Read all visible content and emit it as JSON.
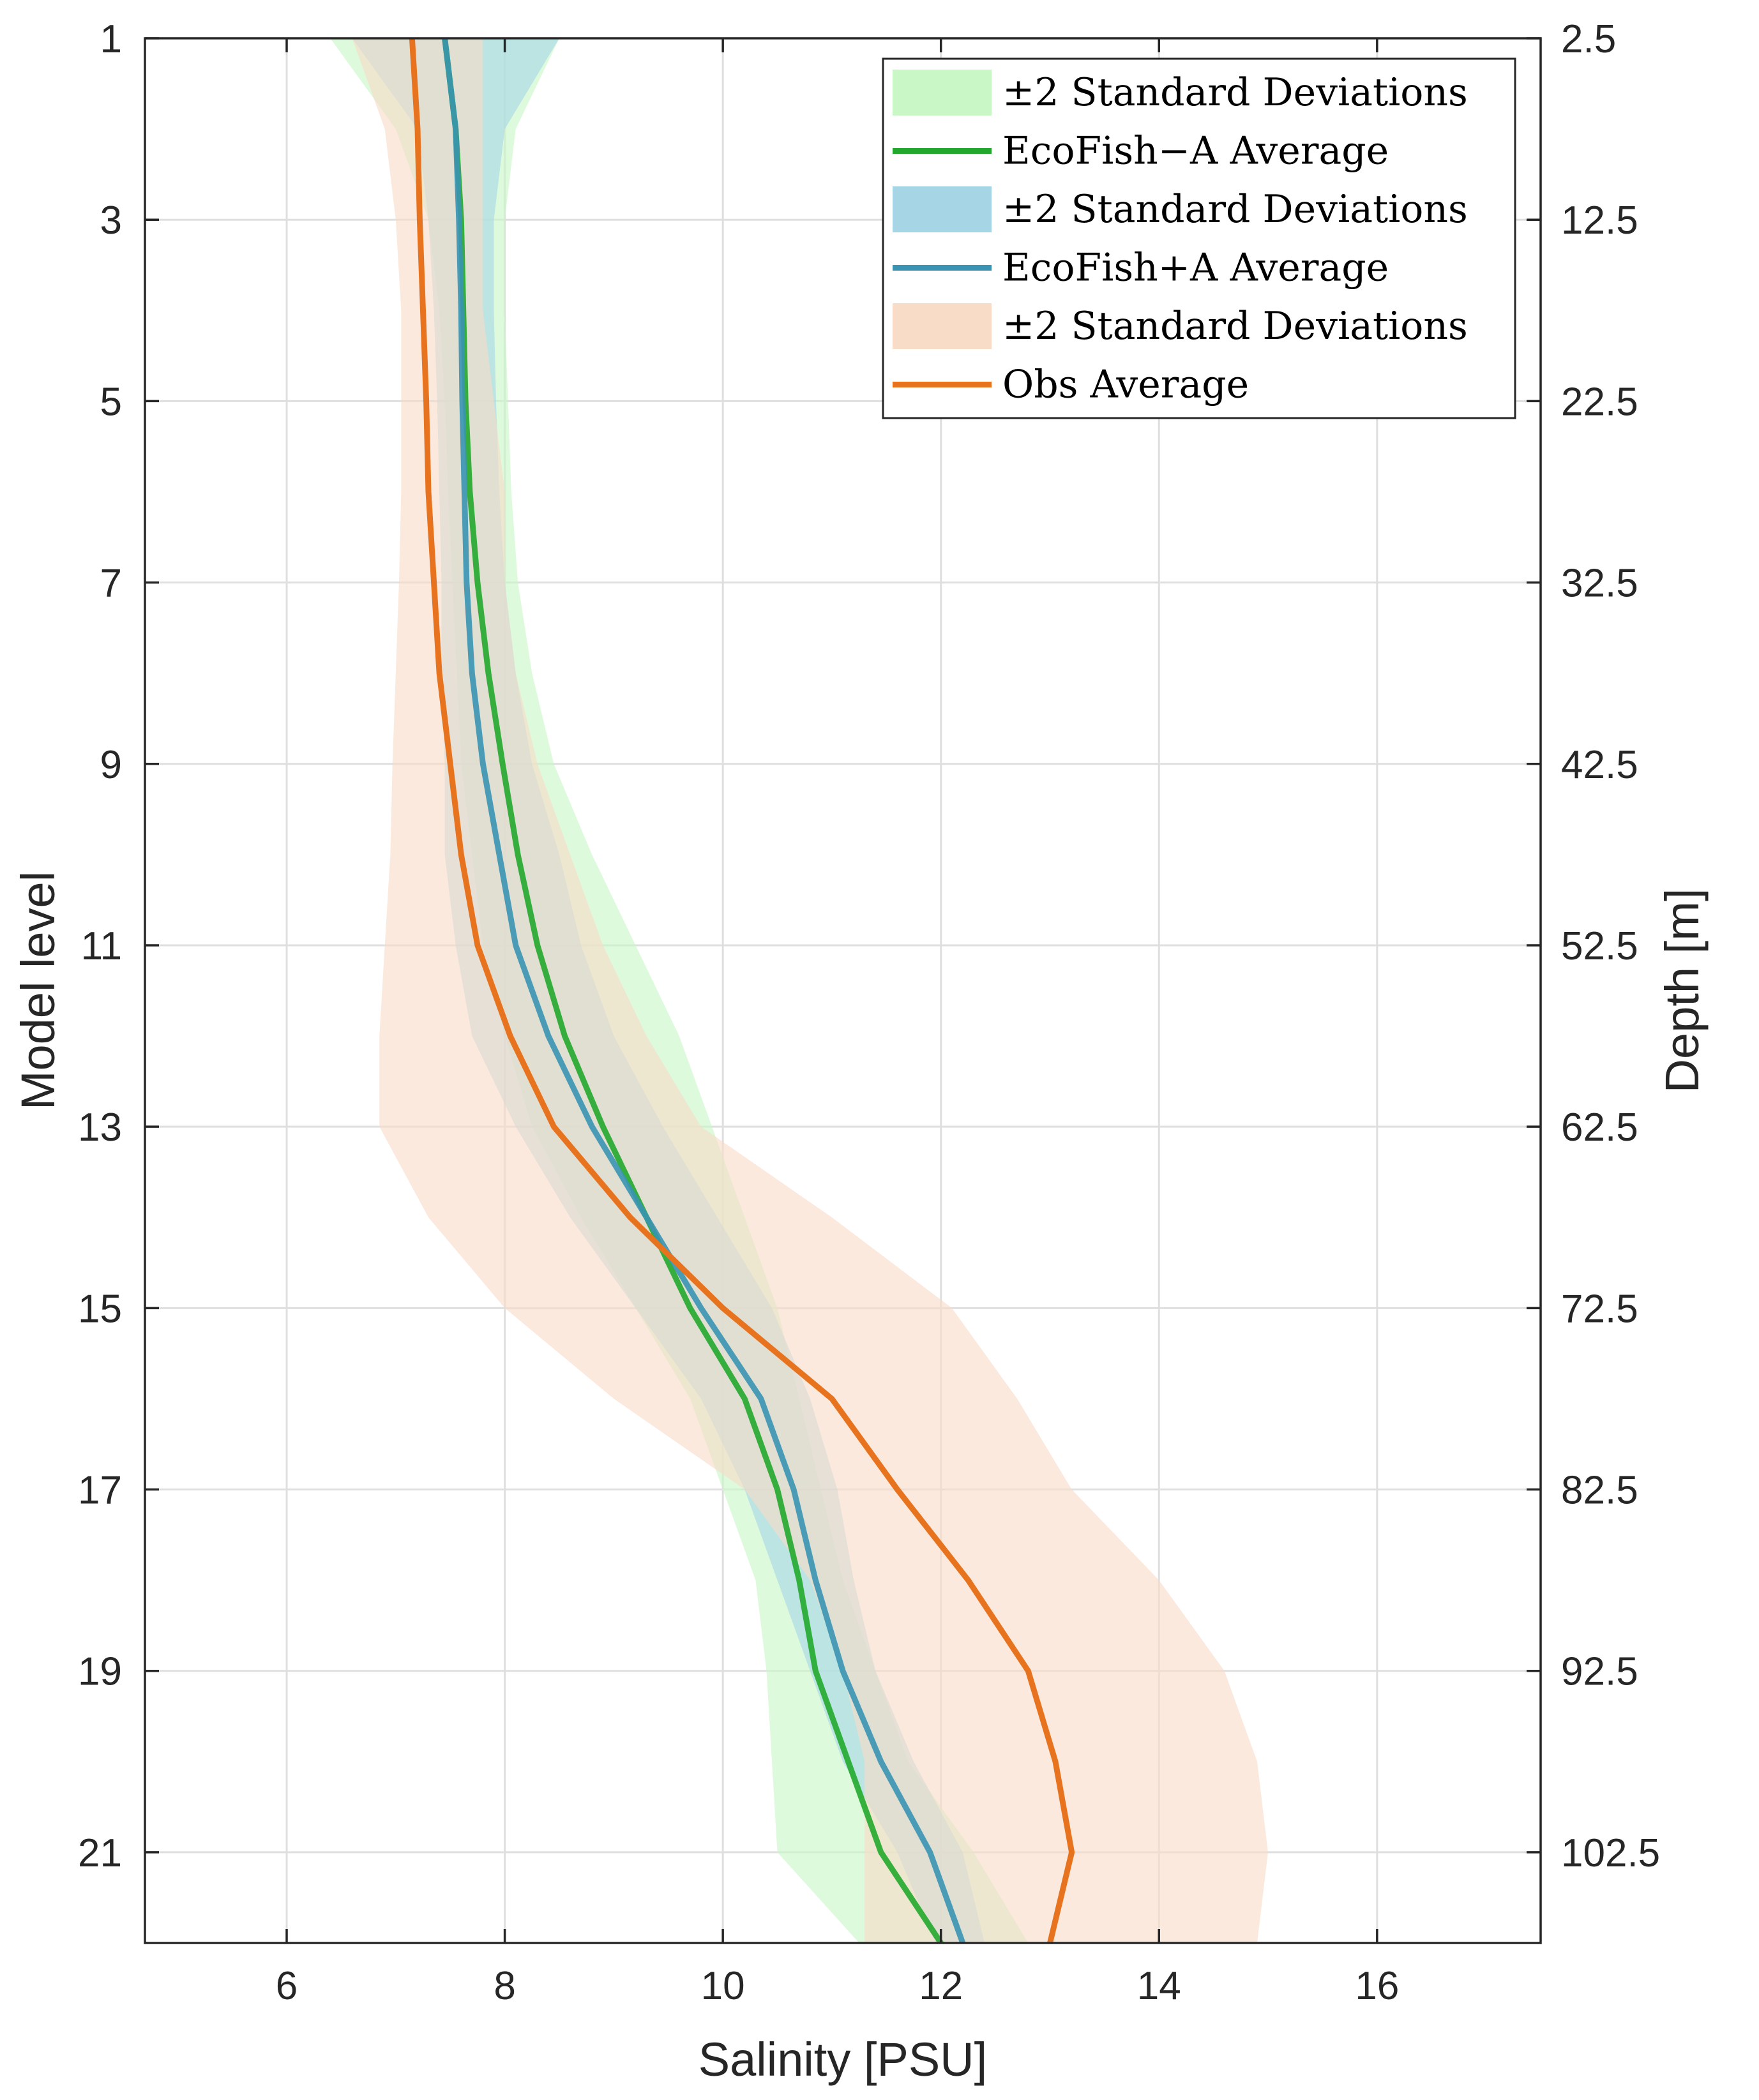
{
  "chart_data": {
    "type": "line",
    "xlabel": "Salinity [PSU]",
    "ylabel": "Model level",
    "ylabel_right": "Depth [m]",
    "xlim": [
      4.7,
      17.5
    ],
    "ylim": [
      1,
      22
    ],
    "y_reversed": true,
    "grid": true,
    "legend_position": "top-right",
    "x_ticks": [
      6,
      8,
      10,
      12,
      14,
      16
    ],
    "y_ticks": [
      1,
      3,
      5,
      7,
      9,
      11,
      13,
      15,
      17,
      19,
      21
    ],
    "y_right_ticks": [
      "2.5",
      "12.5",
      "22.5",
      "32.5",
      "42.5",
      "52.5",
      "62.5",
      "72.5",
      "82.5",
      "92.5",
      "102.5"
    ],
    "levels": [
      1,
      2,
      3,
      4,
      5,
      6,
      7,
      8,
      9,
      10,
      11,
      12,
      13,
      14,
      15,
      16,
      17,
      18,
      19,
      20,
      21,
      22
    ],
    "legend": [
      {
        "label": "±2 Standard Deviations",
        "kind": "patch",
        "color": "#c9f7c6"
      },
      {
        "label": "EcoFish−A Average",
        "kind": "line",
        "color": "#22a82c"
      },
      {
        "label": "±2 Standard Deviations",
        "kind": "patch",
        "color": "#a6d6e6"
      },
      {
        "label": "EcoFish+A Average",
        "kind": "line",
        "color": "#3a93b3"
      },
      {
        "label": "±2 Standard Deviations",
        "kind": "patch",
        "color": "#f8dcc8"
      },
      {
        "label": "Obs Average",
        "kind": "line",
        "color": "#e8731f"
      }
    ],
    "series": [
      {
        "name": "EcoFish−A Average",
        "color": "#22a82c",
        "band_color": "#c9f7c6",
        "mean": [
          7.45,
          7.55,
          7.6,
          7.62,
          7.64,
          7.68,
          7.75,
          7.85,
          7.98,
          8.12,
          8.3,
          8.55,
          8.9,
          9.3,
          9.7,
          10.2,
          10.5,
          10.7,
          10.85,
          11.15,
          11.45,
          12.0
        ],
        "lower": [
          6.4,
          7.0,
          7.3,
          7.4,
          7.45,
          7.48,
          7.52,
          7.56,
          7.6,
          7.7,
          7.8,
          8.0,
          8.25,
          8.7,
          9.2,
          9.7,
          10.0,
          10.3,
          10.4,
          10.45,
          10.5,
          11.25
        ],
        "upper": [
          8.5,
          8.1,
          8.0,
          8.0,
          8.03,
          8.06,
          8.12,
          8.25,
          8.45,
          8.8,
          9.2,
          9.6,
          9.9,
          10.2,
          10.5,
          10.7,
          10.9,
          11.1,
          11.4,
          11.7,
          12.3,
          12.8
        ]
      },
      {
        "name": "EcoFish+A Average",
        "color": "#3a93b3",
        "band_color": "#a6d6e6",
        "mean": [
          7.45,
          7.55,
          7.58,
          7.6,
          7.61,
          7.63,
          7.65,
          7.7,
          7.8,
          7.95,
          8.1,
          8.4,
          8.8,
          9.3,
          9.8,
          10.35,
          10.65,
          10.85,
          11.1,
          11.45,
          11.9,
          12.2
        ],
        "lower": [
          6.6,
          7.2,
          7.3,
          7.35,
          7.38,
          7.4,
          7.42,
          7.42,
          7.45,
          7.45,
          7.55,
          7.7,
          8.1,
          8.6,
          9.2,
          9.8,
          10.2,
          10.5,
          10.8,
          11.1,
          11.6,
          11.95
        ],
        "upper": [
          8.5,
          8.0,
          7.9,
          7.9,
          7.92,
          7.95,
          8.0,
          8.1,
          8.25,
          8.5,
          8.7,
          9.0,
          9.45,
          9.95,
          10.45,
          10.8,
          11.05,
          11.2,
          11.4,
          11.75,
          12.2,
          12.4
        ]
      },
      {
        "name": "Obs Average",
        "color": "#e8731f",
        "band_color": "#f8dcc8",
        "mean": [
          7.15,
          7.2,
          7.22,
          7.25,
          7.28,
          7.3,
          7.35,
          7.4,
          7.5,
          7.6,
          7.75,
          8.05,
          8.45,
          9.15,
          10.0,
          11.0,
          11.6,
          12.25,
          12.8,
          13.05,
          13.2,
          13.0
        ],
        "lower": [
          6.6,
          6.9,
          7.0,
          7.05,
          7.05,
          7.05,
          7.03,
          7.0,
          6.97,
          6.95,
          6.9,
          6.85,
          6.85,
          7.3,
          8.0,
          9.0,
          10.2,
          10.8,
          11.1,
          11.3,
          11.3,
          11.3
        ],
        "upper": [
          7.8,
          7.8,
          7.8,
          7.8,
          7.9,
          8.0,
          8.0,
          8.1,
          8.3,
          8.6,
          8.9,
          9.3,
          9.8,
          11.0,
          12.1,
          12.7,
          13.2,
          14.0,
          14.6,
          14.9,
          15.0,
          14.9
        ]
      }
    ]
  }
}
